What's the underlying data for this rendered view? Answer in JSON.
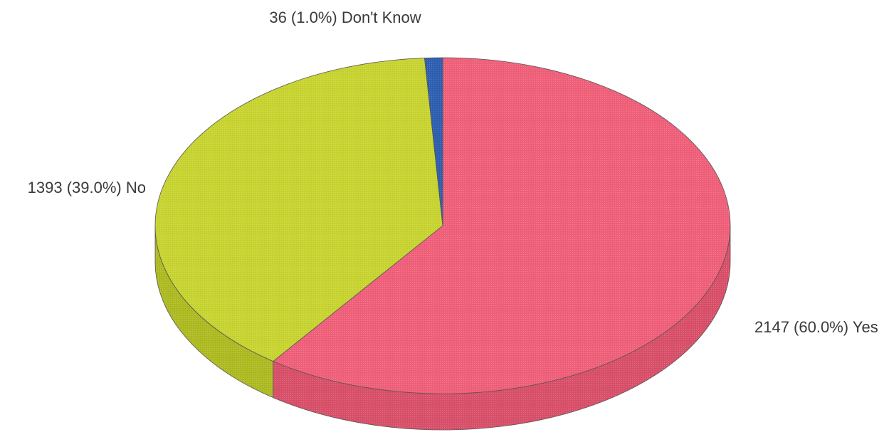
{
  "chart_data": {
    "type": "pie",
    "style": "3d",
    "title": "",
    "slices": [
      {
        "label": "Yes",
        "value": 2147,
        "percent": 60.0,
        "display": "2147 (60.0%) Yes",
        "color": "#f0607a",
        "side_color": "#d9506a"
      },
      {
        "label": "No",
        "value": 1393,
        "percent": 39.0,
        "display": "1393 (39.0%) No",
        "color": "#c8d431",
        "side_color": "#aebb22"
      },
      {
        "label": "Don't Know",
        "value": 36,
        "percent": 1.0,
        "display": "36 (1.0%) Don't Know",
        "color": "#2f5fb0",
        "side_color": "#24488a"
      }
    ],
    "start_angle_deg": 0,
    "direction": "clockwise"
  }
}
